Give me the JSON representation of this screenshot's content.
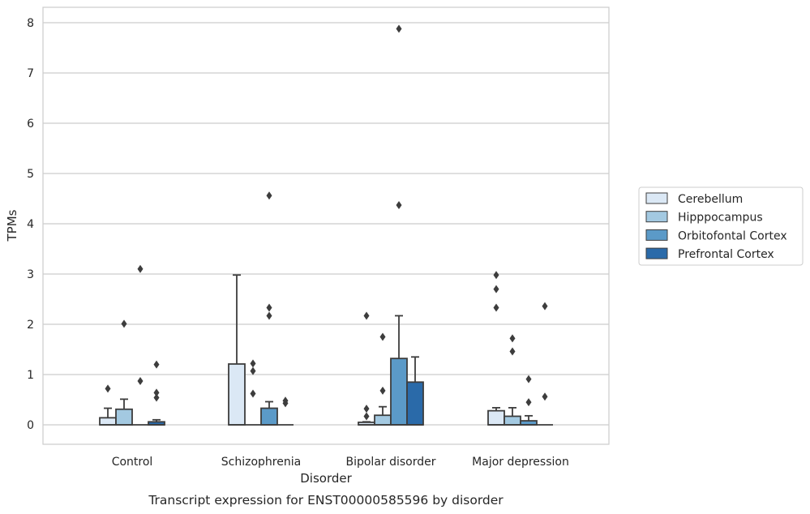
{
  "chart_data": {
    "type": "box",
    "title": "",
    "caption": "Transcript expression for ENST00000585596 by disorder",
    "xlabel": "Disorder",
    "ylabel": "TPMs",
    "ylim": [
      -0.4,
      8.3
    ],
    "yticks": [
      "0",
      "1",
      "2",
      "3",
      "4",
      "5",
      "6",
      "7",
      "8"
    ],
    "grid": "horizontal",
    "legend_position": "right",
    "categories": [
      "Control",
      "Schizophrenia",
      "Bipolar disorder",
      "Major depression"
    ],
    "series": [
      {
        "name": "Cerebellum",
        "color": "#dbe8f5",
        "boxes": [
          {
            "q1": 0,
            "median": 0,
            "q3": 0.14,
            "whisker_low": 0,
            "whisker_high": 0.33,
            "outliers": [
              0.72
            ]
          },
          {
            "q1": 0,
            "median": 0,
            "q3": 1.21,
            "whisker_low": 0,
            "whisker_high": 2.98,
            "outliers": []
          },
          {
            "q1": 0,
            "median": 0,
            "q3": 0.05,
            "whisker_low": 0,
            "whisker_high": 0.06,
            "outliers": [
              0.17,
              0.32,
              2.17
            ]
          },
          {
            "q1": 0,
            "median": 0,
            "q3": 0.28,
            "whisker_low": 0,
            "whisker_high": 0.34,
            "outliers": [
              2.33,
              2.7,
              2.98
            ]
          }
        ]
      },
      {
        "name": "Hipppocampus",
        "color": "#a3c9e1",
        "boxes": [
          {
            "q1": 0,
            "median": 0,
            "q3": 0.31,
            "whisker_low": 0,
            "whisker_high": 0.51,
            "outliers": [
              2.01
            ]
          },
          {
            "q1": 0,
            "median": 0,
            "q3": 0,
            "whisker_low": 0,
            "whisker_high": 0,
            "outliers": [
              0.62,
              1.07,
              1.22
            ]
          },
          {
            "q1": 0,
            "median": 0,
            "q3": 0.19,
            "whisker_low": 0,
            "whisker_high": 0.36,
            "outliers": [
              0.68,
              1.75
            ]
          },
          {
            "q1": 0,
            "median": 0,
            "q3": 0.17,
            "whisker_low": 0,
            "whisker_high": 0.34,
            "outliers": [
              1.46,
              1.72
            ]
          }
        ]
      },
      {
        "name": "Orbitofontal Cortex",
        "color": "#5b9ac8",
        "boxes": [
          {
            "q1": 0,
            "median": 0,
            "q3": 0,
            "whisker_low": 0,
            "whisker_high": 0,
            "outliers": [
              0.87,
              3.1
            ]
          },
          {
            "q1": 0,
            "median": 0,
            "q3": 0.33,
            "whisker_low": 0,
            "whisker_high": 0.46,
            "outliers": [
              2.17,
              2.33,
              4.56
            ]
          },
          {
            "q1": 0,
            "median": 0,
            "q3": 1.32,
            "whisker_low": 0,
            "whisker_high": 2.17,
            "outliers": [
              4.37,
              7.88
            ]
          },
          {
            "q1": 0,
            "median": 0,
            "q3": 0.08,
            "whisker_low": 0,
            "whisker_high": 0.18,
            "outliers": [
              0.45,
              0.91
            ]
          }
        ]
      },
      {
        "name": "Prefrontal Cortex",
        "color": "#2a6aa9",
        "boxes": [
          {
            "q1": 0,
            "median": 0,
            "q3": 0.06,
            "whisker_low": 0,
            "whisker_high": 0.1,
            "outliers": [
              0.54,
              0.64,
              1.2
            ]
          },
          {
            "q1": 0,
            "median": 0,
            "q3": 0,
            "whisker_low": 0,
            "whisker_high": 0,
            "outliers": [
              0.43,
              0.48
            ]
          },
          {
            "q1": 0,
            "median": 0,
            "q3": 0.85,
            "whisker_low": 0,
            "whisker_high": 1.35,
            "outliers": []
          },
          {
            "q1": 0,
            "median": 0,
            "q3": 0,
            "whisker_low": 0,
            "whisker_high": 0,
            "outliers": [
              0.56,
              2.36
            ]
          }
        ]
      }
    ]
  }
}
